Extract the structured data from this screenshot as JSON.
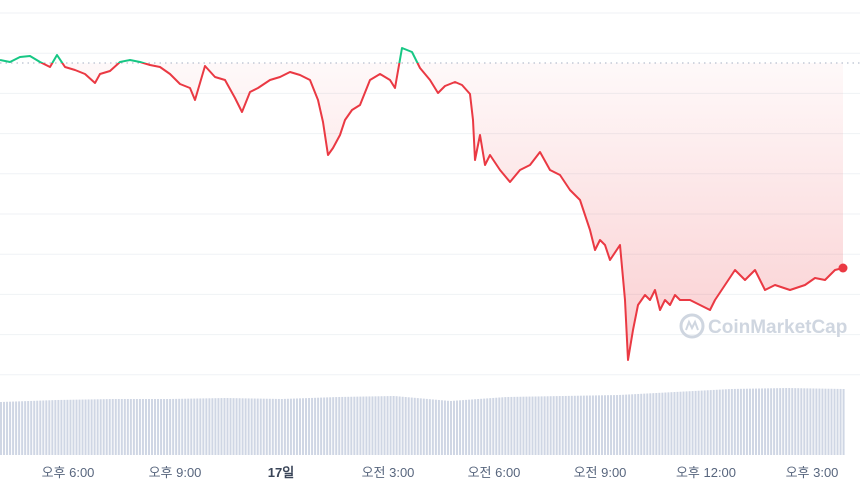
{
  "chart_data": {
    "type": "line",
    "title": "",
    "xlabel": "",
    "ylabel": "",
    "x_ticks": [
      "오후 6:00",
      "오후 9:00",
      "17일",
      "오전 3:00",
      "오전 6:00",
      "오전 9:00",
      "오후 12:00",
      "오후 3:00"
    ],
    "bold_ticks": [
      "17일"
    ],
    "grid": true,
    "baseline_value": 100,
    "ylim": [
      68.8,
      105
    ],
    "colors": {
      "up": "#16c784",
      "down": "#ea3943",
      "volume": "#cfd6e4",
      "grid": "#eff2f5"
    },
    "price_index": [
      [
        0,
        100.3
      ],
      [
        10,
        100.1
      ],
      [
        20,
        100.6
      ],
      [
        30,
        100.7
      ],
      [
        40,
        100.1
      ],
      [
        50,
        99.6
      ],
      [
        57,
        100.8
      ],
      [
        65,
        99.6
      ],
      [
        75,
        99.3
      ],
      [
        85,
        98.9
      ],
      [
        95,
        98.0
      ],
      [
        100,
        98.9
      ],
      [
        110,
        99.2
      ],
      [
        120,
        100.1
      ],
      [
        130,
        100.3
      ],
      [
        140,
        100.1
      ],
      [
        150,
        99.8
      ],
      [
        160,
        99.6
      ],
      [
        170,
        98.9
      ],
      [
        180,
        97.9
      ],
      [
        190,
        97.5
      ],
      [
        195,
        96.3
      ],
      [
        205,
        99.7
      ],
      [
        215,
        98.6
      ],
      [
        225,
        98.3
      ],
      [
        235,
        96.5
      ],
      [
        242,
        95.1
      ],
      [
        250,
        97.1
      ],
      [
        258,
        97.5
      ],
      [
        270,
        98.3
      ],
      [
        280,
        98.6
      ],
      [
        290,
        99.1
      ],
      [
        300,
        98.8
      ],
      [
        310,
        98.3
      ],
      [
        318,
        96.3
      ],
      [
        323,
        94.1
      ],
      [
        328,
        90.8
      ],
      [
        333,
        91.5
      ],
      [
        340,
        92.8
      ],
      [
        345,
        94.3
      ],
      [
        352,
        95.3
      ],
      [
        360,
        95.8
      ],
      [
        370,
        98.3
      ],
      [
        380,
        98.9
      ],
      [
        390,
        98.3
      ],
      [
        395,
        97.5
      ],
      [
        402,
        101.5
      ],
      [
        412,
        101.1
      ],
      [
        420,
        99.5
      ],
      [
        430,
        98.3
      ],
      [
        438,
        97.0
      ],
      [
        445,
        97.7
      ],
      [
        455,
        98.1
      ],
      [
        462,
        97.8
      ],
      [
        470,
        96.9
      ],
      [
        473,
        94.3
      ],
      [
        475,
        90.3
      ],
      [
        480,
        92.8
      ],
      [
        485,
        89.8
      ],
      [
        490,
        90.8
      ],
      [
        500,
        89.3
      ],
      [
        510,
        88.1
      ],
      [
        520,
        89.3
      ],
      [
        530,
        89.8
      ],
      [
        540,
        91.1
      ],
      [
        550,
        89.3
      ],
      [
        560,
        88.8
      ],
      [
        570,
        87.3
      ],
      [
        580,
        86.3
      ],
      [
        590,
        83.3
      ],
      [
        595,
        81.3
      ],
      [
        600,
        82.3
      ],
      [
        605,
        81.8
      ],
      [
        610,
        80.3
      ],
      [
        620,
        81.8
      ],
      [
        625,
        76.3
      ],
      [
        628,
        70.3
      ],
      [
        633,
        73.3
      ],
      [
        638,
        75.8
      ],
      [
        645,
        76.8
      ],
      [
        650,
        76.3
      ],
      [
        655,
        77.3
      ],
      [
        660,
        75.3
      ],
      [
        665,
        76.3
      ],
      [
        670,
        75.8
      ],
      [
        675,
        76.8
      ],
      [
        680,
        76.3
      ],
      [
        690,
        76.3
      ],
      [
        700,
        75.8
      ],
      [
        710,
        75.3
      ],
      [
        715,
        76.3
      ],
      [
        725,
        77.8
      ],
      [
        735,
        79.3
      ],
      [
        745,
        78.3
      ],
      [
        755,
        79.3
      ],
      [
        765,
        77.3
      ],
      [
        775,
        77.8
      ],
      [
        790,
        77.3
      ],
      [
        805,
        77.8
      ],
      [
        815,
        78.5
      ],
      [
        825,
        78.3
      ],
      [
        835,
        79.3
      ],
      [
        843,
        79.5
      ]
    ],
    "volume_relative": [
      53,
      55,
      56,
      56,
      57,
      56,
      58,
      59,
      54,
      58,
      59,
      60,
      63,
      66,
      67,
      66
    ]
  },
  "watermark": "CoinMarketCap"
}
